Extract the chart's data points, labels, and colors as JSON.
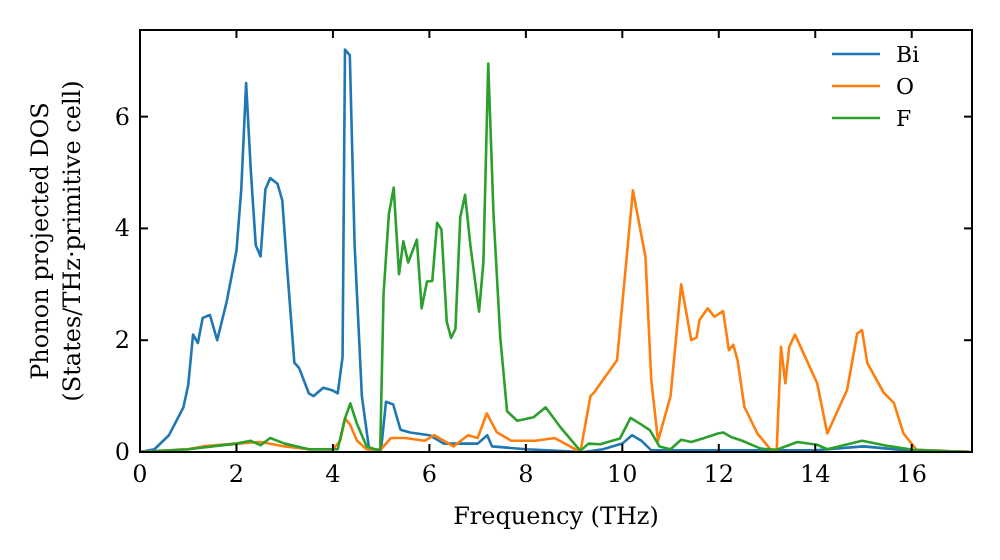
{
  "chart_data": {
    "type": "line",
    "xlabel": "Frequency (THz)",
    "ylabel": "Phonon projected DOS\n(States/THz·primitive cell)",
    "xlim": [
      0,
      17.25
    ],
    "ylim": [
      0,
      7.55
    ],
    "xticks": [
      0,
      2,
      4,
      6,
      8,
      10,
      12,
      14,
      16
    ],
    "yticks": [
      0,
      2,
      4,
      6
    ],
    "legend": "top right",
    "grid": false,
    "series": [
      {
        "name": "Bi",
        "color": "#1f77b4",
        "x": [
          0,
          0.3,
          0.6,
          0.9,
          1.0,
          1.1,
          1.2,
          1.3,
          1.45,
          1.6,
          1.8,
          2.0,
          2.1,
          2.2,
          2.3,
          2.4,
          2.5,
          2.6,
          2.7,
          2.85,
          2.95,
          3.05,
          3.2,
          3.3,
          3.5,
          3.6,
          3.8,
          4.0,
          4.1,
          4.2,
          4.25,
          4.35,
          4.45,
          4.6,
          4.75,
          5.0,
          5.1,
          5.25,
          5.4,
          5.6,
          6.0,
          6.3,
          6.6,
          7.0,
          7.2,
          7.3,
          8,
          9.2,
          9.6,
          10.0,
          10.2,
          10.4,
          10.6,
          12,
          14,
          15,
          16,
          17.2
        ],
        "values": [
          0,
          0.05,
          0.3,
          0.8,
          1.2,
          2.1,
          1.95,
          2.4,
          2.45,
          2.0,
          2.7,
          3.6,
          4.7,
          6.6,
          5.0,
          3.7,
          3.5,
          4.7,
          4.9,
          4.8,
          4.5,
          3.3,
          1.6,
          1.5,
          1.05,
          1.0,
          1.15,
          1.1,
          1.05,
          1.7,
          7.2,
          7.1,
          3.7,
          1.0,
          0.05,
          0.05,
          0.9,
          0.85,
          0.4,
          0.35,
          0.3,
          0.15,
          0.15,
          0.15,
          0.3,
          0.1,
          0.05,
          0,
          0.05,
          0.15,
          0.3,
          0.2,
          0.03,
          0.03,
          0.03,
          0.1,
          0.02,
          0
        ]
      },
      {
        "name": "O",
        "color": "#ff7f0e",
        "x": [
          0,
          1,
          1.3,
          2,
          2.5,
          3,
          3.5,
          4.0,
          4.15,
          4.25,
          4.35,
          4.5,
          4.7,
          5.0,
          5.2,
          5.5,
          5.9,
          6.1,
          6.5,
          6.8,
          7.0,
          7.19,
          7.4,
          7.7,
          8.2,
          8.6,
          9.13,
          9.34,
          9.41,
          9.89,
          10.22,
          10.48,
          10.6,
          10.74,
          11.0,
          11.22,
          11.43,
          11.54,
          11.6,
          11.77,
          11.91,
          12.09,
          12.21,
          12.3,
          12.39,
          12.53,
          12.8,
          13.08,
          13.2,
          13.29,
          13.38,
          13.46,
          13.58,
          14.04,
          14.25,
          14.66,
          14.87,
          14.97,
          15.08,
          15.42,
          15.63,
          15.83,
          16.1,
          17.2
        ],
        "values": [
          0,
          0.05,
          0.1,
          0.15,
          0.18,
          0.1,
          0.05,
          0.05,
          0.2,
          0.6,
          0.5,
          0.2,
          0.05,
          0.05,
          0.25,
          0.25,
          0.2,
          0.3,
          0.1,
          0.3,
          0.25,
          0.69,
          0.35,
          0.2,
          0.2,
          0.25,
          0,
          1.0,
          1.06,
          1.64,
          4.68,
          3.49,
          1.29,
          0.2,
          1.0,
          3.0,
          2.0,
          2.05,
          2.36,
          2.57,
          2.42,
          2.52,
          1.82,
          1.92,
          1.64,
          0.81,
          0.33,
          0.04,
          0.03,
          1.88,
          1.23,
          1.88,
          2.1,
          1.23,
          0.33,
          1.11,
          2.12,
          2.18,
          1.59,
          1.06,
          0.88,
          0.33,
          0.04,
          0
        ]
      },
      {
        "name": "F",
        "color": "#2ca02c",
        "x": [
          0,
          1,
          2,
          2.3,
          2.5,
          2.7,
          3,
          3.5,
          4.1,
          4.25,
          4.36,
          4.5,
          4.7,
          4.98,
          5.05,
          5.16,
          5.26,
          5.37,
          5.46,
          5.56,
          5.74,
          5.84,
          5.95,
          6.06,
          6.16,
          6.25,
          6.36,
          6.45,
          6.54,
          6.64,
          6.74,
          6.85,
          7.03,
          7.12,
          7.22,
          7.33,
          7.47,
          7.61,
          7.82,
          8.16,
          8.41,
          8.71,
          9.13,
          9.3,
          9.54,
          9.95,
          10.17,
          10.36,
          10.57,
          10.77,
          11.0,
          11.22,
          11.43,
          11.7,
          11.98,
          12.09,
          12.25,
          12.46,
          12.87,
          13.2,
          13.63,
          14.04,
          14.25,
          14.97,
          15.56,
          16.03,
          17.2
        ],
        "values": [
          0,
          0.05,
          0.15,
          0.2,
          0.12,
          0.25,
          0.15,
          0.05,
          0.05,
          0.6,
          0.87,
          0.5,
          0.1,
          0.02,
          2.83,
          4.26,
          4.73,
          3.18,
          3.77,
          3.39,
          3.8,
          2.57,
          3.05,
          3.06,
          4.1,
          3.98,
          2.33,
          2.04,
          2.2,
          4.2,
          4.6,
          3.7,
          2.51,
          3.4,
          6.95,
          4.24,
          2.04,
          0.73,
          0.56,
          0.62,
          0.8,
          0.45,
          0.02,
          0.15,
          0.14,
          0.24,
          0.61,
          0.51,
          0.39,
          0.1,
          0.05,
          0.22,
          0.18,
          0.25,
          0.33,
          0.35,
          0.27,
          0.21,
          0.06,
          0.04,
          0.18,
          0.13,
          0.05,
          0.2,
          0.1,
          0.04,
          0
        ]
      }
    ]
  }
}
